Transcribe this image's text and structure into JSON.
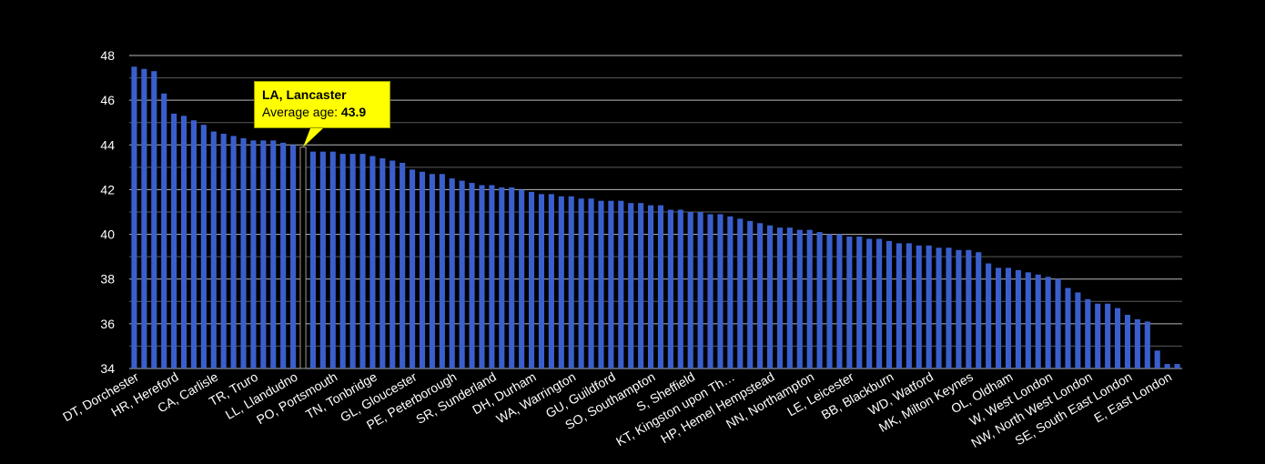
{
  "chart_data": {
    "type": "bar",
    "ylim": [
      34,
      48
    ],
    "yticks": [
      34,
      36,
      38,
      40,
      42,
      44,
      46,
      48
    ],
    "grid": true,
    "bar_color": "#3a5fcd",
    "highlight_index": 17,
    "values": [
      47.5,
      47.4,
      47.3,
      46.3,
      45.4,
      45.3,
      45.1,
      44.9,
      44.6,
      44.5,
      44.4,
      44.3,
      44.2,
      44.2,
      44.2,
      44.1,
      44.0,
      43.9,
      43.7,
      43.7,
      43.7,
      43.6,
      43.6,
      43.6,
      43.5,
      43.4,
      43.3,
      43.2,
      42.9,
      42.8,
      42.7,
      42.7,
      42.5,
      42.4,
      42.3,
      42.2,
      42.2,
      42.1,
      42.1,
      42.0,
      41.9,
      41.8,
      41.8,
      41.7,
      41.7,
      41.6,
      41.6,
      41.5,
      41.5,
      41.5,
      41.4,
      41.4,
      41.3,
      41.3,
      41.1,
      41.1,
      41.0,
      41.0,
      40.9,
      40.9,
      40.8,
      40.7,
      40.6,
      40.5,
      40.4,
      40.3,
      40.3,
      40.2,
      40.2,
      40.1,
      40.0,
      40.0,
      39.9,
      39.9,
      39.8,
      39.8,
      39.7,
      39.6,
      39.6,
      39.5,
      39.5,
      39.4,
      39.4,
      39.3,
      39.3,
      39.2,
      38.7,
      38.5,
      38.5,
      38.4,
      38.3,
      38.2,
      38.1,
      38.0,
      37.6,
      37.4,
      37.1,
      36.9,
      36.9,
      36.7,
      36.4,
      36.2,
      36.1,
      34.8,
      34.2,
      34.2
    ],
    "tick_labels": [
      {
        "index": 0,
        "text": "DT, Dorchester"
      },
      {
        "index": 4,
        "text": "HR, Hereford"
      },
      {
        "index": 8,
        "text": "CA, Carlisle"
      },
      {
        "index": 12,
        "text": "TR, Truro"
      },
      {
        "index": 16,
        "text": "LL, Llandudno"
      },
      {
        "index": 20,
        "text": "PO, Portsmouth"
      },
      {
        "index": 24,
        "text": "TN, Tonbridge"
      },
      {
        "index": 28,
        "text": "GL, Gloucester"
      },
      {
        "index": 32,
        "text": "PE, Peterborough"
      },
      {
        "index": 36,
        "text": "SR, Sunderland"
      },
      {
        "index": 40,
        "text": "DH, Durham"
      },
      {
        "index": 44,
        "text": "WA, Warrington"
      },
      {
        "index": 48,
        "text": "GU, Guildford"
      },
      {
        "index": 52,
        "text": "SO, Southampton"
      },
      {
        "index": 56,
        "text": "S, Sheffield"
      },
      {
        "index": 60,
        "text": "KT, Kingston upon Th…"
      },
      {
        "index": 64,
        "text": "HP, Hemel Hempstead"
      },
      {
        "index": 68,
        "text": "NN, Northampton"
      },
      {
        "index": 72,
        "text": "LE, Leicester"
      },
      {
        "index": 76,
        "text": "BB, Blackburn"
      },
      {
        "index": 80,
        "text": "WD, Watford"
      },
      {
        "index": 84,
        "text": "MK, Milton Keynes"
      },
      {
        "index": 88,
        "text": "OL, Oldham"
      },
      {
        "index": 92,
        "text": "W, West London"
      },
      {
        "index": 96,
        "text": "NW, North West London"
      },
      {
        "index": 100,
        "text": "SE, South East London"
      },
      {
        "index": 104,
        "text": "E, East London"
      }
    ]
  },
  "tooltip": {
    "title": "LA, Lancaster",
    "label": "Average age:",
    "value": "43.9"
  }
}
